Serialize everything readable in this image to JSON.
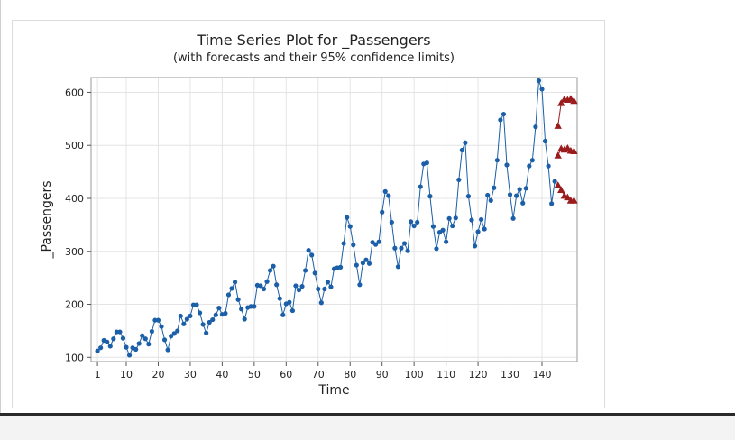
{
  "chart_data": {
    "type": "line",
    "title": "Time Series Plot for _Passengers",
    "subtitle": "(with forecasts and their 95% confidence limits)",
    "xlabel": "Time",
    "ylabel": "_Passengers",
    "xlim": [
      -1,
      151
    ],
    "ylim": [
      92,
      628
    ],
    "x_ticks": [
      1,
      10,
      20,
      30,
      40,
      50,
      60,
      70,
      80,
      90,
      100,
      110,
      120,
      130,
      140
    ],
    "y_ticks": [
      100,
      200,
      300,
      400,
      500,
      600
    ],
    "grid": true,
    "colors": {
      "observed": "#1a5fa8",
      "forecast": "#9b1c1c",
      "grid": "#e4e4e4"
    },
    "series": [
      {
        "key": "observed",
        "marker": "circle",
        "x_start": 1,
        "values": [
          112,
          118,
          132,
          129,
          121,
          135,
          148,
          148,
          136,
          119,
          104,
          118,
          115,
          126,
          141,
          135,
          125,
          149,
          170,
          170,
          158,
          133,
          114,
          140,
          145,
          150,
          178,
          163,
          172,
          178,
          199,
          199,
          184,
          162,
          146,
          166,
          171,
          180,
          193,
          181,
          183,
          218,
          230,
          242,
          209,
          191,
          172,
          194,
          196,
          196,
          236,
          235,
          229,
          243,
          264,
          272,
          237,
          211,
          180,
          201,
          204,
          188,
          235,
          227,
          234,
          264,
          302,
          293,
          259,
          229,
          203,
          229,
          242,
          233,
          267,
          269,
          270,
          315,
          364,
          347,
          312,
          274,
          237,
          278,
          284,
          277,
          317,
          313,
          318,
          374,
          413,
          405,
          355,
          306,
          271,
          306,
          315,
          301,
          356,
          348,
          355,
          422,
          465,
          467,
          404,
          347,
          305,
          336,
          340,
          318,
          362,
          348,
          363,
          435,
          491,
          505,
          404,
          359,
          310,
          337,
          360,
          342,
          406,
          396,
          420,
          472,
          548,
          559,
          463,
          407,
          362,
          405,
          417,
          391,
          419,
          461,
          472,
          535,
          622,
          606,
          508,
          461,
          390,
          432
        ]
      },
      {
        "key": "forecast",
        "marker": "triangle",
        "x": [
          145,
          146,
          147,
          148,
          149,
          150
        ],
        "values": [
          481,
          494,
          492,
          495,
          490,
          489
        ]
      },
      {
        "key": "upper_95",
        "marker": "triangle",
        "x": [
          145,
          146,
          147,
          148,
          149,
          150
        ],
        "values": [
          537,
          580,
          587,
          586,
          588,
          584
        ]
      },
      {
        "key": "lower_95",
        "marker": "triangle",
        "x": [
          145,
          146,
          147,
          148,
          149,
          150
        ],
        "values": [
          425,
          416,
          405,
          402,
          396,
          396
        ]
      }
    ]
  }
}
